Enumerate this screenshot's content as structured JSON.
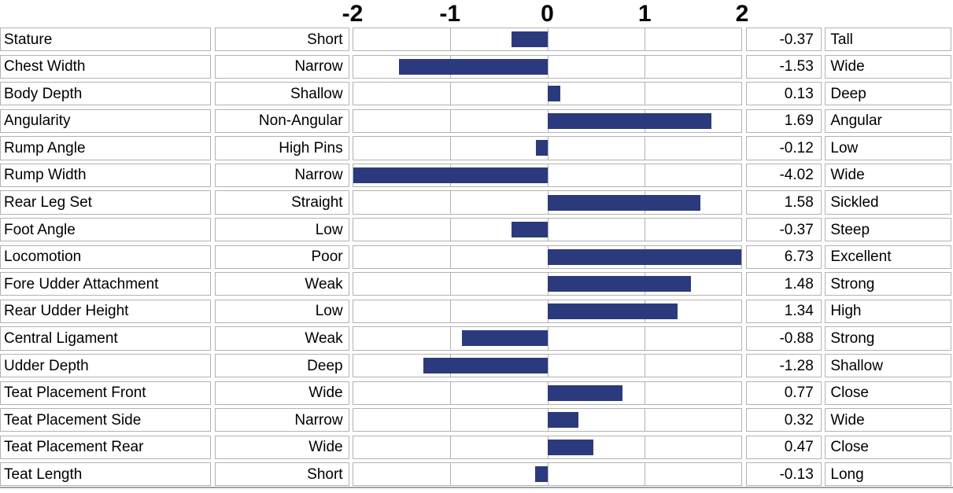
{
  "chart_data": {
    "type": "bar",
    "orientation": "horizontal",
    "xlim": [
      -2,
      2
    ],
    "axis_ticks": [
      "-2",
      "-1",
      "0",
      "1",
      "2"
    ],
    "grid": true,
    "colors": {
      "bar": "#2b3a7c",
      "gridline": "#b2b2b2",
      "baseline": "#99a0ab",
      "text": "#000000"
    },
    "rows": [
      {
        "trait": "Stature",
        "low": "Short",
        "value": -0.37,
        "value_label": "-0.37",
        "high": "Tall"
      },
      {
        "trait": "Chest Width",
        "low": "Narrow",
        "value": -1.53,
        "value_label": "-1.53",
        "high": "Wide"
      },
      {
        "trait": "Body Depth",
        "low": "Shallow",
        "value": 0.13,
        "value_label": "0.13",
        "high": "Deep"
      },
      {
        "trait": "Angularity",
        "low": "Non-Angular",
        "value": 1.69,
        "value_label": "1.69",
        "high": "Angular"
      },
      {
        "trait": "Rump Angle",
        "low": "High Pins",
        "value": -0.12,
        "value_label": "-0.12",
        "high": "Low"
      },
      {
        "trait": "Rump Width",
        "low": "Narrow",
        "value": -4.02,
        "value_label": "-4.02",
        "high": "Wide"
      },
      {
        "trait": "Rear Leg Set",
        "low": "Straight",
        "value": 1.58,
        "value_label": "1.58",
        "high": "Sickled"
      },
      {
        "trait": "Foot Angle",
        "low": "Low",
        "value": -0.37,
        "value_label": "-0.37",
        "high": "Steep"
      },
      {
        "trait": "Locomotion",
        "low": "Poor",
        "value": 6.73,
        "value_label": "6.73",
        "high": "Excellent"
      },
      {
        "trait": "Fore Udder Attachment",
        "low": "Weak",
        "value": 1.48,
        "value_label": "1.48",
        "high": "Strong"
      },
      {
        "trait": "Rear Udder Height",
        "low": "Low",
        "value": 1.34,
        "value_label": "1.34",
        "high": "High"
      },
      {
        "trait": "Central Ligament",
        "low": "Weak",
        "value": -0.88,
        "value_label": "-0.88",
        "high": "Strong"
      },
      {
        "trait": "Udder Depth",
        "low": "Deep",
        "value": -1.28,
        "value_label": "-1.28",
        "high": "Shallow"
      },
      {
        "trait": "Teat Placement Front",
        "low": "Wide",
        "value": 0.77,
        "value_label": "0.77",
        "high": "Close"
      },
      {
        "trait": "Teat Placement Side",
        "low": "Narrow",
        "value": 0.32,
        "value_label": "0.32",
        "high": "Wide"
      },
      {
        "trait": "Teat Placement Rear",
        "low": "Wide",
        "value": 0.47,
        "value_label": "0.47",
        "high": "Close"
      },
      {
        "trait": "Teat Length",
        "low": "Short",
        "value": -0.13,
        "value_label": "-0.13",
        "high": "Long"
      }
    ]
  }
}
